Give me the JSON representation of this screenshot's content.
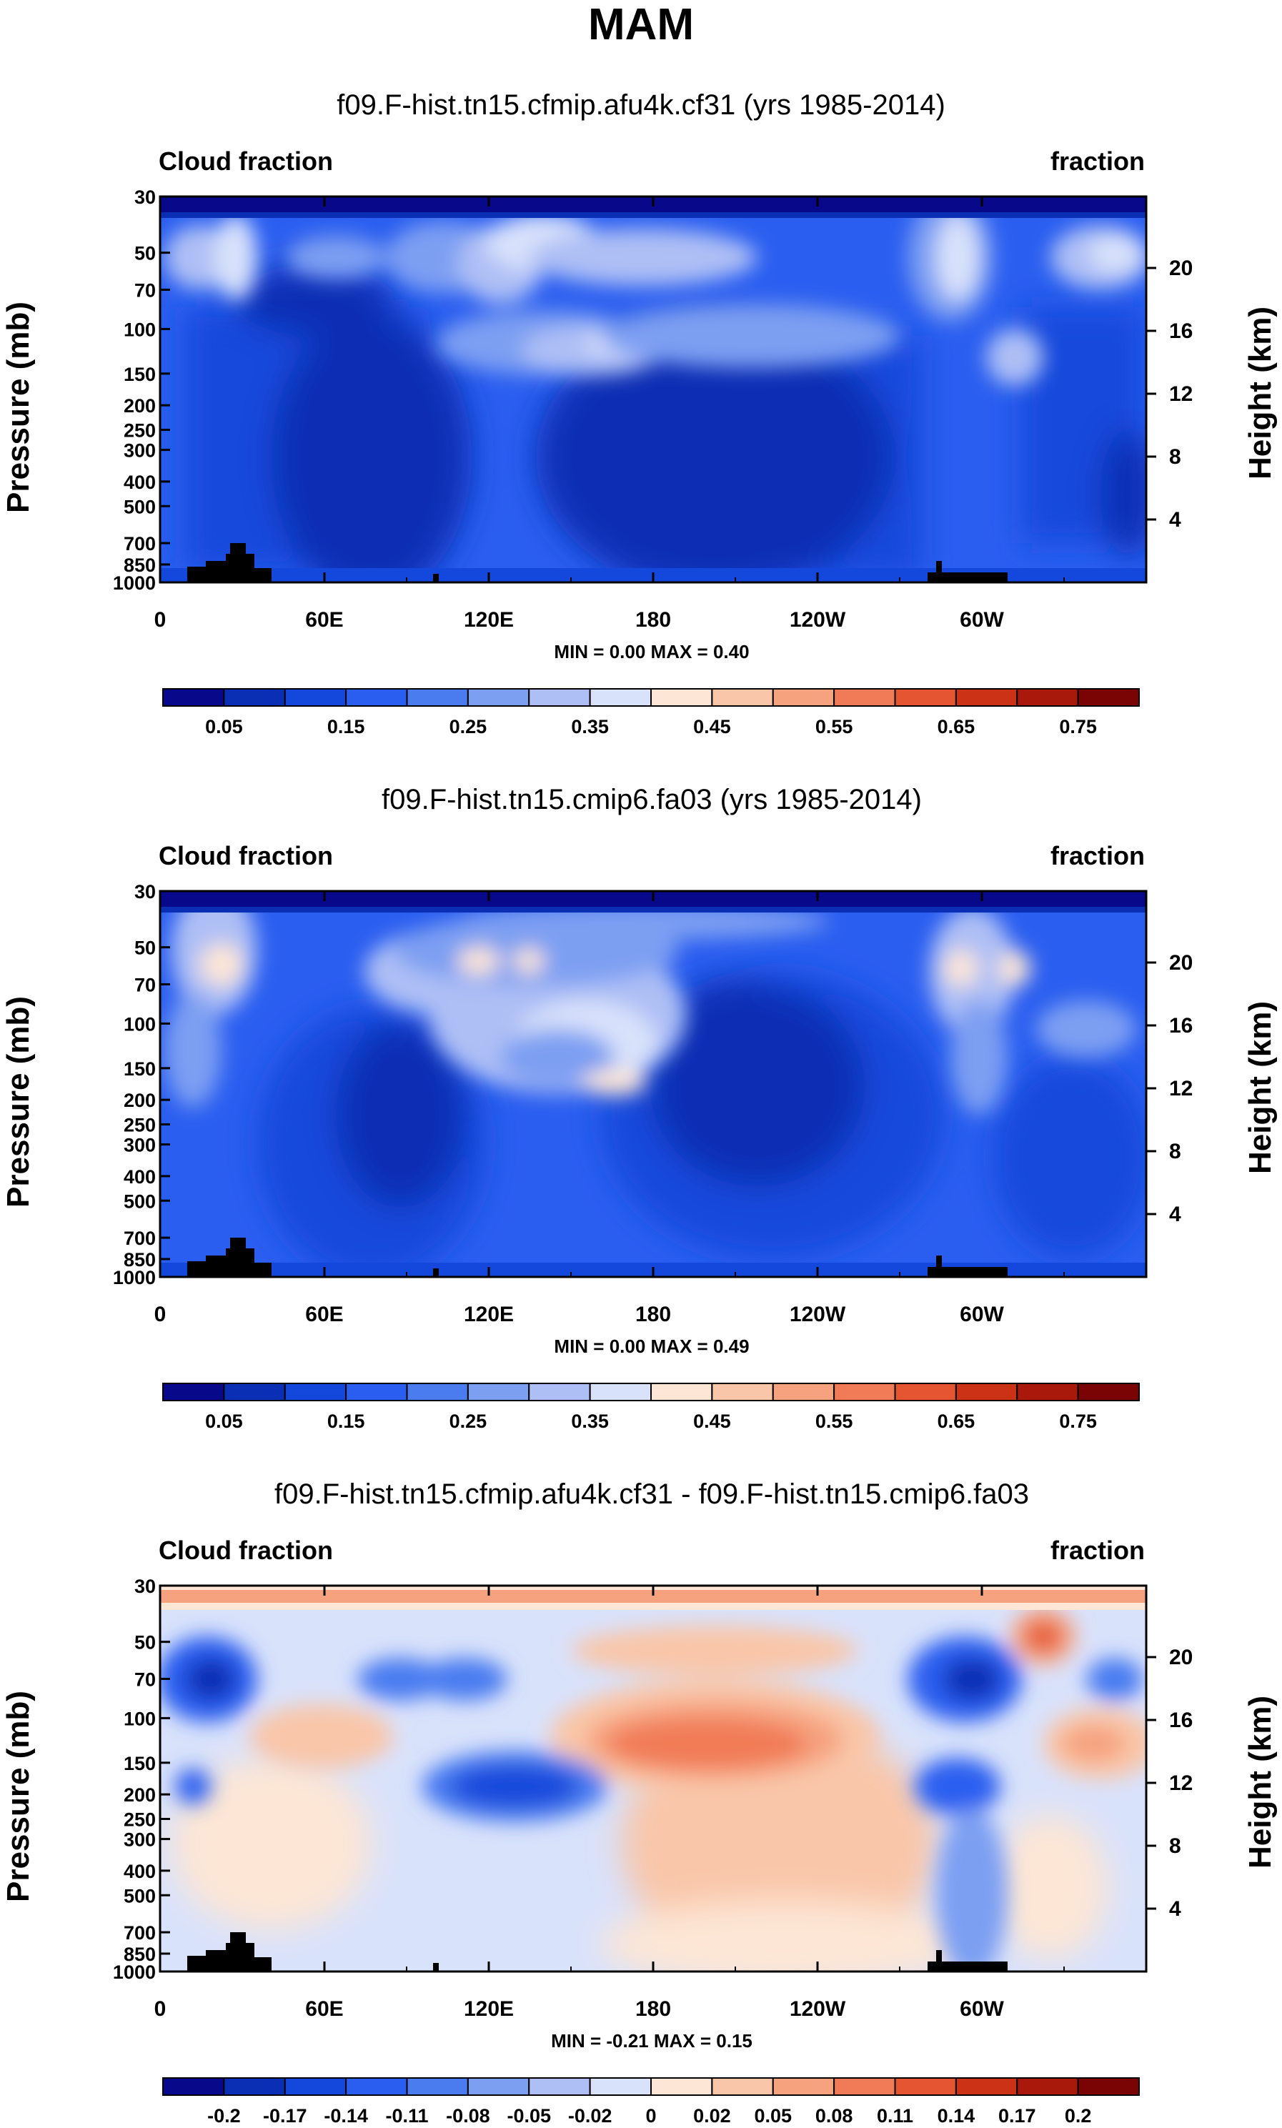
{
  "page_title": "MAM",
  "chart_data": [
    {
      "type": "heatmap",
      "title": "f09.F-hist.tn15.cfmip.afu4k.cf31 (yrs 1985-2014)",
      "left_label": "Cloud fraction",
      "right_label": "fraction",
      "ylabel": "Pressure (mb)",
      "ylabel_right": "Height (km)",
      "x_ticks": [
        "0",
        "60E",
        "120E",
        "180",
        "120W",
        "60W"
      ],
      "y_ticks": [
        "30",
        "50",
        "70",
        "100",
        "150",
        "200",
        "250",
        "300",
        "400",
        "500",
        "700",
        "850",
        "1000"
      ],
      "height_ticks": [
        "20",
        "16",
        "12",
        "8",
        "4"
      ],
      "min": 0.0,
      "max": 0.4,
      "stats_text": "MIN =   0.00   MAX =   0.40",
      "colorbar_labels": [
        "0.05",
        "0.15",
        "0.25",
        "0.35",
        "0.45",
        "0.55",
        "0.65",
        "0.75"
      ]
    },
    {
      "type": "heatmap",
      "title": "f09.F-hist.tn15.cmip6.fa03 (yrs 1985-2014)",
      "left_label": "Cloud fraction",
      "right_label": "fraction",
      "ylabel": "Pressure (mb)",
      "ylabel_right": "Height (km)",
      "x_ticks": [
        "0",
        "60E",
        "120E",
        "180",
        "120W",
        "60W"
      ],
      "y_ticks": [
        "30",
        "50",
        "70",
        "100",
        "150",
        "200",
        "250",
        "300",
        "400",
        "500",
        "700",
        "850",
        "1000"
      ],
      "height_ticks": [
        "20",
        "16",
        "12",
        "8",
        "4"
      ],
      "min": 0.0,
      "max": 0.49,
      "stats_text": "MIN =   0.00   MAX =   0.49",
      "colorbar_labels": [
        "0.05",
        "0.15",
        "0.25",
        "0.35",
        "0.45",
        "0.55",
        "0.65",
        "0.75"
      ]
    },
    {
      "type": "heatmap",
      "title": "f09.F-hist.tn15.cfmip.afu4k.cf31 - f09.F-hist.tn15.cmip6.fa03",
      "left_label": "Cloud fraction",
      "right_label": "fraction",
      "ylabel": "Pressure (mb)",
      "ylabel_right": "Height (km)",
      "x_ticks": [
        "0",
        "60E",
        "120E",
        "180",
        "120W",
        "60W"
      ],
      "y_ticks": [
        "30",
        "50",
        "70",
        "100",
        "150",
        "200",
        "250",
        "300",
        "400",
        "500",
        "700",
        "850",
        "1000"
      ],
      "height_ticks": [
        "20",
        "16",
        "12",
        "8",
        "4"
      ],
      "min": -0.21,
      "max": 0.15,
      "stats_text": "MIN =  -0.21   MAX =   0.15",
      "colorbar_labels": [
        "-0.2",
        "-0.17",
        "-0.14",
        "-0.11",
        "-0.08",
        "-0.05",
        "-0.02",
        "0",
        "0.02",
        "0.05",
        "0.08",
        "0.11",
        "0.14",
        "0.17",
        "0.2"
      ]
    }
  ],
  "colors": {
    "seq": [
      "#08088a",
      "#0a2fb4",
      "#1448dc",
      "#2a5ef0",
      "#4a7cf0",
      "#7d9ff2",
      "#aebff5",
      "#d9e2fb",
      "#fde6d5",
      "#f9c6a9",
      "#f6a27f",
      "#f17b57",
      "#e55532",
      "#cc3316",
      "#a8190b",
      "#7a0404"
    ],
    "div": [
      "#08088a",
      "#0a2fb4",
      "#1448dc",
      "#2a5ef0",
      "#4a7cf0",
      "#7d9ff2",
      "#aebff5",
      "#d9e2fb",
      "#fde6d5",
      "#f9c6a9",
      "#f6a27f",
      "#f17b57",
      "#e55532",
      "#cc3316",
      "#a8190b",
      "#7a0404"
    ],
    "terrain": "#000000"
  }
}
